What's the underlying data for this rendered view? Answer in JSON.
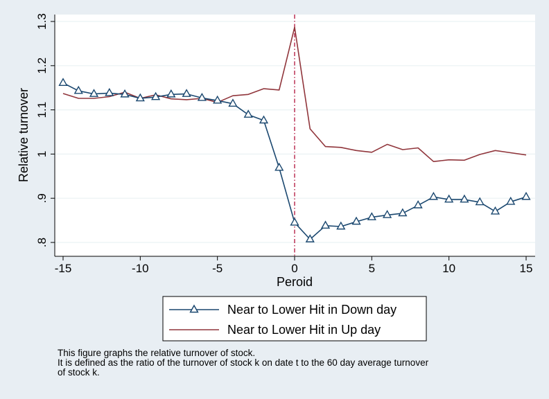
{
  "chart_data": {
    "type": "line",
    "xlabel": "Peroid",
    "ylabel": "Relative turnover",
    "xlim": [
      -15,
      15
    ],
    "ylim": [
      0.8,
      1.3
    ],
    "xticks": [
      -15,
      -10,
      -5,
      0,
      5,
      10,
      15
    ],
    "yticks": [
      0.8,
      0.9,
      1.0,
      1.1,
      1.2,
      1.3
    ],
    "xtick_labels": [
      "-15",
      "-10",
      "-5",
      "0",
      "5",
      "10",
      "15"
    ],
    "ytick_labels": [
      ".8",
      ".9",
      "1",
      "1.1",
      "1.2",
      "1.3"
    ],
    "grid": "horizontal",
    "reference_line": {
      "x": 0,
      "style": "dash-dot",
      "color": "#b0103a"
    },
    "legend_position": "bottom",
    "x": [
      -15,
      -14,
      -13,
      -12,
      -11,
      -10,
      -9,
      -8,
      -7,
      -6,
      -5,
      -4,
      -3,
      -2,
      -1,
      0,
      1,
      2,
      3,
      4,
      5,
      6,
      7,
      8,
      9,
      10,
      11,
      12,
      13,
      14,
      15
    ],
    "series": [
      {
        "name": "Near to Lower Hit in Down day",
        "color": "#1a476f",
        "marker": "hollow-triangle",
        "values": [
          1.161,
          1.143,
          1.136,
          1.138,
          1.135,
          1.126,
          1.129,
          1.135,
          1.136,
          1.127,
          1.121,
          1.114,
          1.089,
          1.076,
          0.969,
          0.845,
          0.807,
          0.838,
          0.836,
          0.847,
          0.857,
          0.862,
          0.866,
          0.884,
          0.903,
          0.897,
          0.897,
          0.891,
          0.87,
          0.892,
          0.903
        ]
      },
      {
        "name": "Near to Lower Hit in Up day",
        "color": "#90353b",
        "marker": "none",
        "values": [
          1.137,
          1.126,
          1.126,
          1.13,
          1.14,
          1.126,
          1.134,
          1.125,
          1.123,
          1.126,
          1.117,
          1.132,
          1.135,
          1.148,
          1.145,
          1.287,
          1.057,
          1.017,
          1.015,
          1.008,
          1.004,
          1.022,
          1.01,
          1.014,
          0.983,
          0.987,
          0.986,
          0.999,
          1.008,
          1.003,
          0.998
        ]
      }
    ]
  },
  "note": {
    "line1": "This figure graphs the relative turnover of stock.",
    "line2": "It is defined as the ratio of the turnover of stock k on date t to the 60 day average turnover",
    "line3": "of stock k."
  }
}
